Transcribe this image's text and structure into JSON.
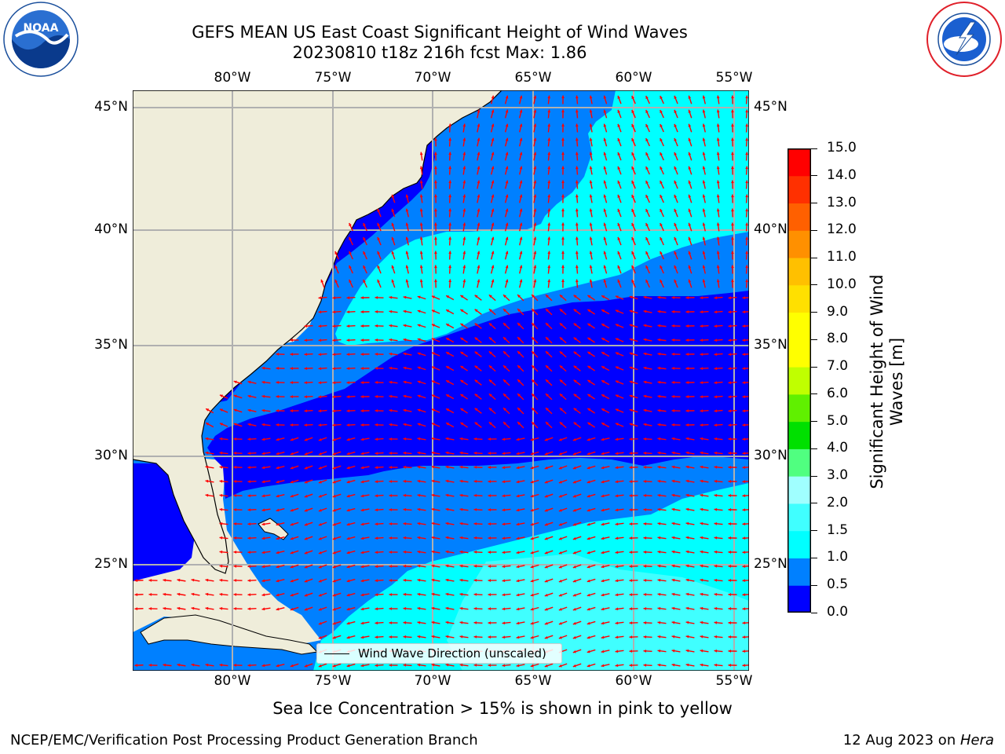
{
  "title": {
    "line1": "GEFS MEAN US East Coast Significant Height of Wind Waves",
    "line2": "20230810 t18z 216h fcst   Max: 1.86"
  },
  "map": {
    "lon_labels": [
      "80°W",
      "75°W",
      "70°W",
      "65°W",
      "60°W",
      "55°W"
    ],
    "lat_labels_left": [
      "45°N",
      "40°N",
      "35°N",
      "30°N",
      "25°N"
    ],
    "lat_labels_right": [
      "45°N",
      "40°N",
      "35°N",
      "30°N",
      "25°N"
    ],
    "lon_range": [
      -85,
      -54.5
    ],
    "lat_range": [
      20,
      46
    ],
    "land_color": "#efedda",
    "arrow_color": "#ff0000"
  },
  "legend": {
    "label": "Wind Wave Direction (unscaled)"
  },
  "colorbar": {
    "label": "Significant Height of Wind Waves [m]",
    "ticks": [
      "0.0",
      "0.5",
      "1.0",
      "1.5",
      "2.0",
      "3.0",
      "4.0",
      "5.0",
      "6.0",
      "7.0",
      "8.0",
      "9.0",
      "10.0",
      "11.0",
      "12.0",
      "13.0",
      "14.0",
      "15.0"
    ],
    "colors": [
      "#0000ff",
      "#0080ff",
      "#00ffff",
      "#40ffff",
      "#a0ffff",
      "#50ff80",
      "#00e000",
      "#60f000",
      "#c0ff00",
      "#ffff00",
      "#ffff00",
      "#ffe000",
      "#ffc000",
      "#ff9000",
      "#ff6000",
      "#ff3000",
      "#ff0000"
    ]
  },
  "note": "Sea Ice Concentration > 15% is shown in pink to yellow",
  "footer": {
    "left": "NCEP/EMC/Verification Post Processing Product Generation Branch",
    "date": "12 Aug 2023 on ",
    "host": "Hera"
  },
  "logos": {
    "left": "NOAA",
    "right": "NATIONAL WEATHER SERVICE"
  }
}
